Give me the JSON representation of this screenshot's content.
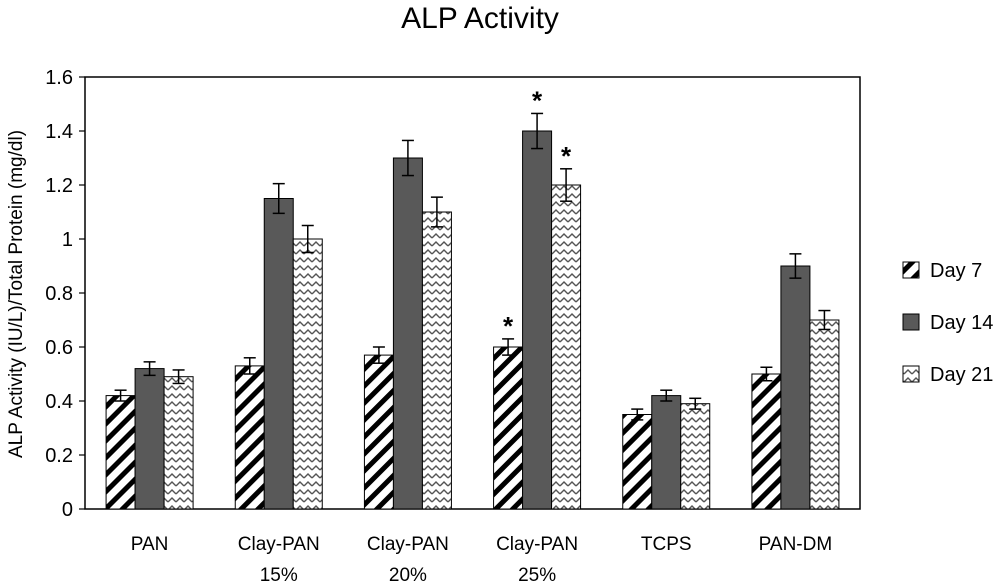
{
  "chart_data": {
    "type": "bar",
    "title": "ALP Activity",
    "xlabel": "",
    "ylabel": "ALP Activity (IU/L)/Total Protein (mg/dl)",
    "ylim": [
      0,
      1.6
    ],
    "yticks": [
      "0",
      "0.2",
      "0.4",
      "0.6",
      "0.8",
      "1",
      "1.2",
      "1.4",
      "1.6"
    ],
    "categories": [
      [
        "PAN"
      ],
      [
        "Clay-PAN",
        "15%"
      ],
      [
        "Clay-PAN",
        "20%"
      ],
      [
        "Clay-PAN",
        "25%"
      ],
      [
        "TCPS"
      ],
      [
        "PAN-DM"
      ]
    ],
    "series": [
      {
        "name": "Day 7",
        "pattern": "diagonal-stripes",
        "fill": "#ffffff",
        "values": [
          0.42,
          0.53,
          0.57,
          0.6,
          0.35,
          0.5
        ],
        "errors": [
          0.02,
          0.03,
          0.03,
          0.03,
          0.02,
          0.025
        ]
      },
      {
        "name": "Day 14",
        "pattern": "solid",
        "fill": "#595959",
        "values": [
          0.52,
          1.15,
          1.3,
          1.4,
          0.42,
          0.9
        ],
        "errors": [
          0.025,
          0.055,
          0.065,
          0.065,
          0.02,
          0.045
        ]
      },
      {
        "name": "Day 21",
        "pattern": "zigzag",
        "fill": "#ffffff",
        "values": [
          0.49,
          1.0,
          1.1,
          1.2,
          0.39,
          0.7
        ],
        "errors": [
          0.025,
          0.05,
          0.055,
          0.06,
          0.02,
          0.035
        ]
      }
    ],
    "annotations": [
      {
        "text": "*",
        "category_index": 3,
        "series_index": 0
      },
      {
        "text": "*",
        "category_index": 3,
        "series_index": 1
      },
      {
        "text": "*",
        "category_index": 3,
        "series_index": 2
      }
    ],
    "legend_position": "right",
    "grid": false
  }
}
